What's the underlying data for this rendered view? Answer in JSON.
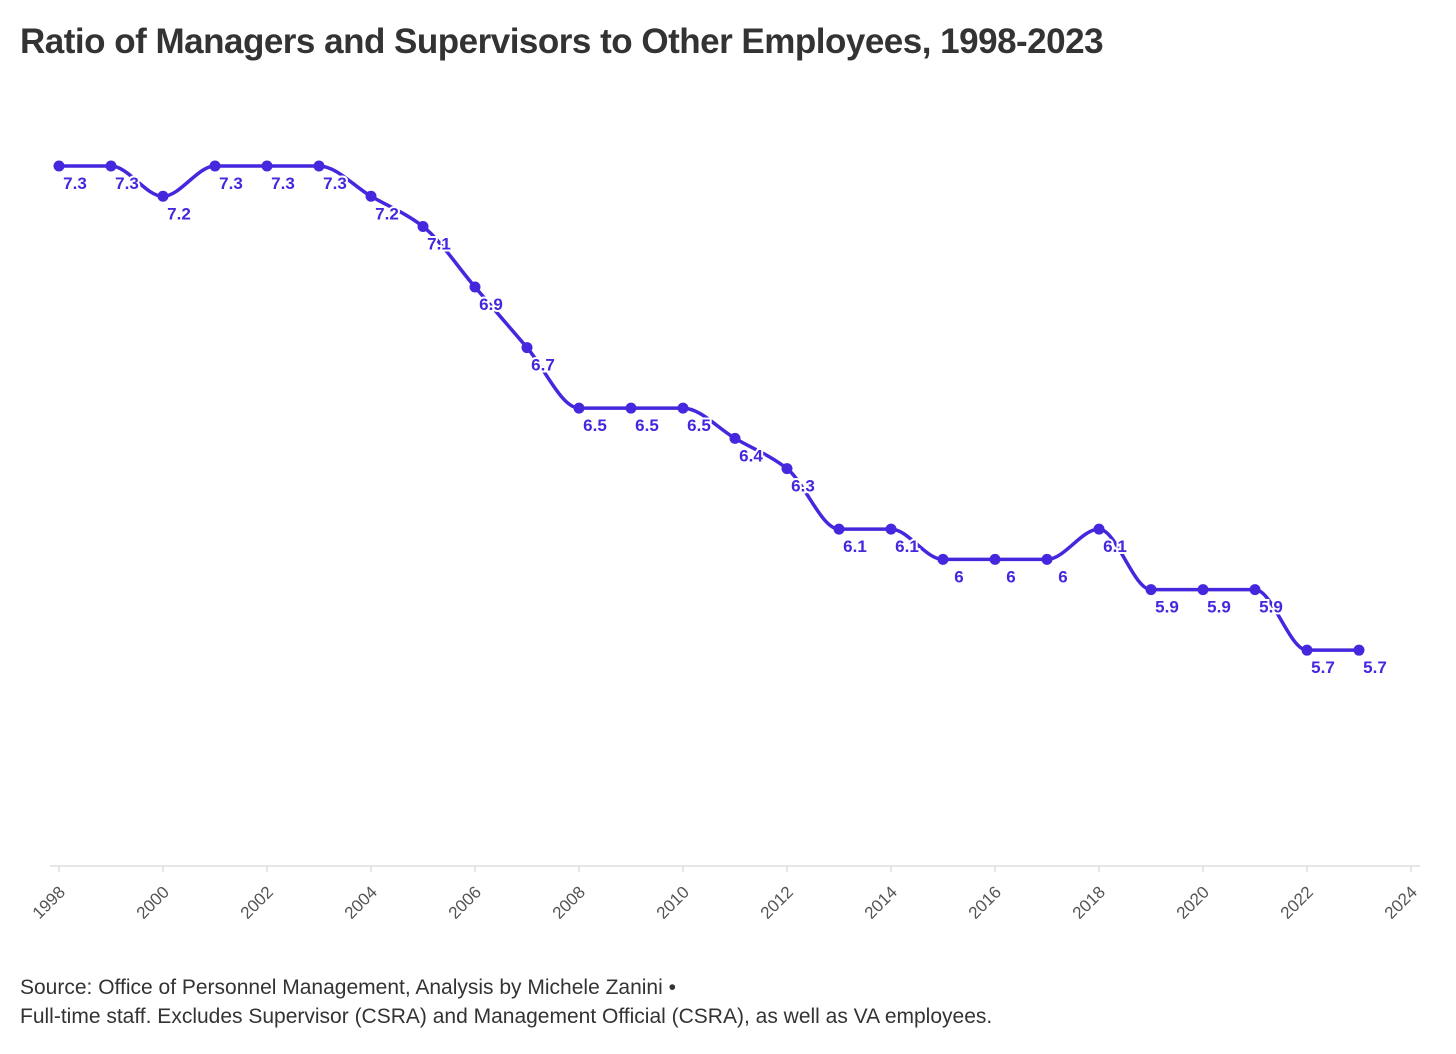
{
  "title": "Ratio of Managers and Supervisors to Other Employees, 1998-2023",
  "footer": {
    "source": "Source: Office of Personnel Management, Analysis by Michele Zanini •",
    "note": "Full-time staff. Excludes Supervisor (CSRA) and Management Official (CSRA), as well as VA employees."
  },
  "colors": {
    "line": "#4527dd",
    "axis": "#e6e6e6",
    "tick_text": "#555555",
    "title_text": "#333333"
  },
  "chart_data": {
    "type": "line",
    "title": "Ratio of Managers and Supervisors to Other Employees, 1998-2023",
    "xlabel": "",
    "ylabel": "",
    "xlim": [
      1998,
      2024
    ],
    "ylim": [
      5.0,
      7.3
    ],
    "x_ticks": [
      "1998",
      "2000",
      "2002",
      "2004",
      "2006",
      "2008",
      "2010",
      "2012",
      "2014",
      "2016",
      "2018",
      "2020",
      "2022",
      "2024"
    ],
    "grid": false,
    "legend": "none",
    "curve": "smooth",
    "x": [
      1998,
      1999,
      2000,
      2001,
      2002,
      2003,
      2004,
      2005,
      2006,
      2007,
      2008,
      2009,
      2010,
      2011,
      2012,
      2013,
      2014,
      2015,
      2016,
      2017,
      2018,
      2019,
      2020,
      2021,
      2022,
      2023
    ],
    "values": [
      7.3,
      7.3,
      7.2,
      7.3,
      7.3,
      7.3,
      7.2,
      7.1,
      6.9,
      6.7,
      6.5,
      6.5,
      6.5,
      6.4,
      6.3,
      6.1,
      6.1,
      6,
      6,
      6,
      6.1,
      5.9,
      5.9,
      5.9,
      5.7,
      5.7
    ],
    "data_labels": [
      "7.3",
      "7.3",
      "7.2",
      "7.3",
      "7.3",
      "7.3",
      "7.2",
      "7.1",
      "6.9",
      "6.7",
      "6.5",
      "6.5",
      "6.5",
      "6.4",
      "6.3",
      "6.1",
      "6.1",
      "6",
      "6",
      "6",
      "6.1",
      "5.9",
      "5.9",
      "5.9",
      "5.7",
      "5.7"
    ]
  }
}
